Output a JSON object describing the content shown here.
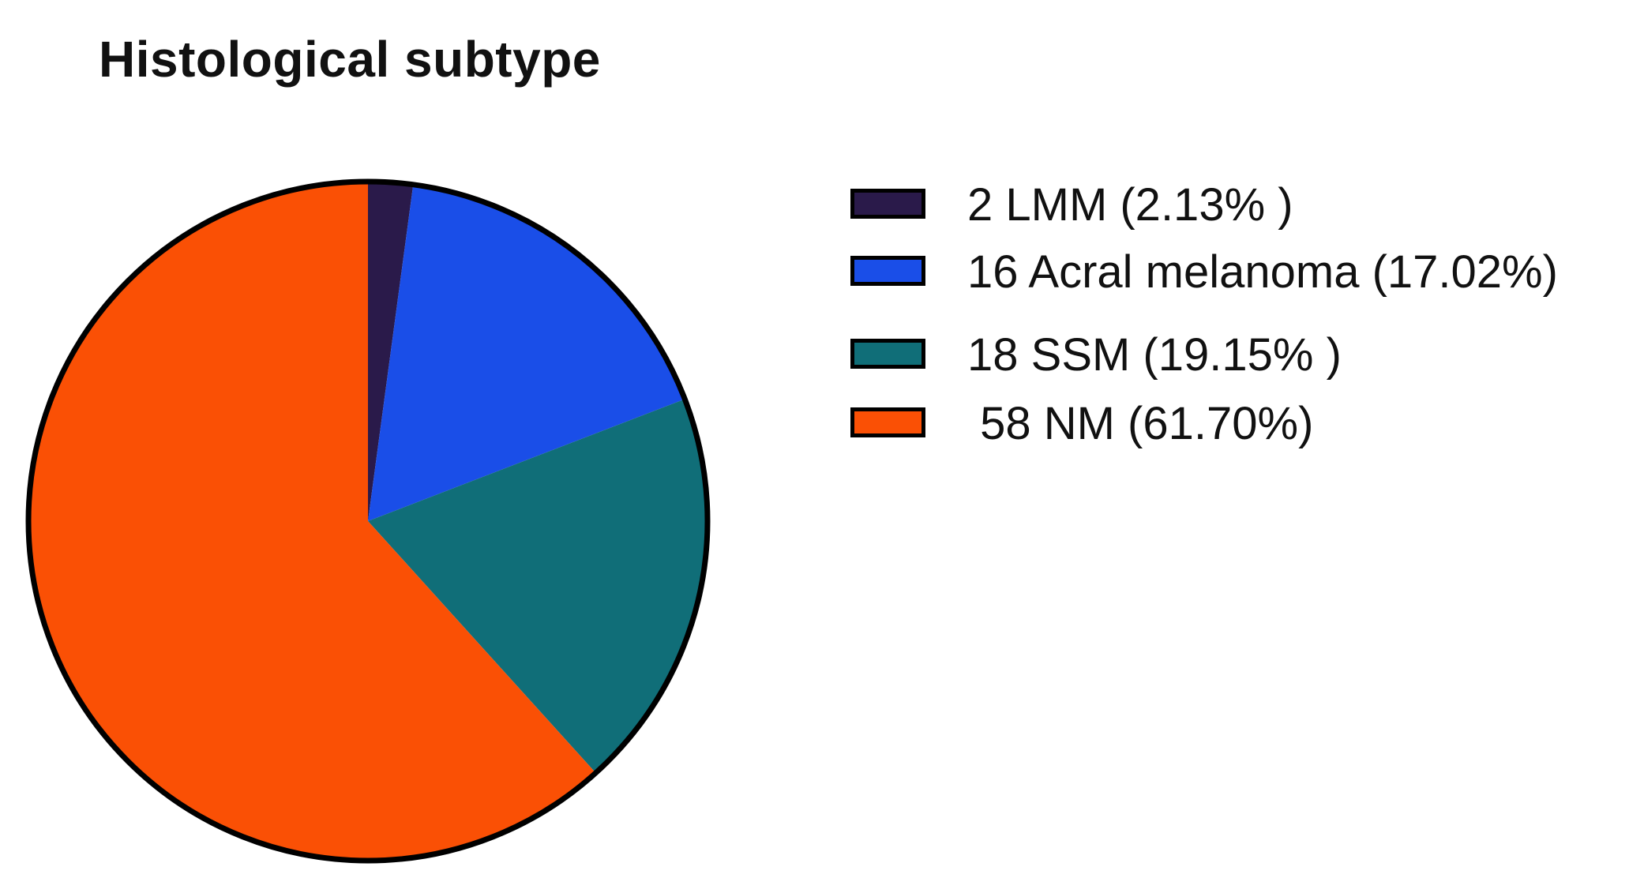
{
  "chart_data": {
    "type": "pie",
    "title": "Histological subtype",
    "slices": [
      {
        "label": "2 LMM (2.13% )",
        "value": 2,
        "percent": 2.13,
        "color": "#2a1a4a"
      },
      {
        "label": "16 Acral melanoma (17.02%)",
        "value": 16,
        "percent": 17.02,
        "color": "#1a4ee8"
      },
      {
        "label": "18 SSM (19.15% )",
        "value": 18,
        "percent": 19.15,
        "color": "#106e78"
      },
      {
        "label": " 58 NM (61.70%)",
        "value": 58,
        "percent": 61.7,
        "color": "#fa5005"
      }
    ],
    "legend_position": "right",
    "start_angle": "top, clockwise"
  }
}
